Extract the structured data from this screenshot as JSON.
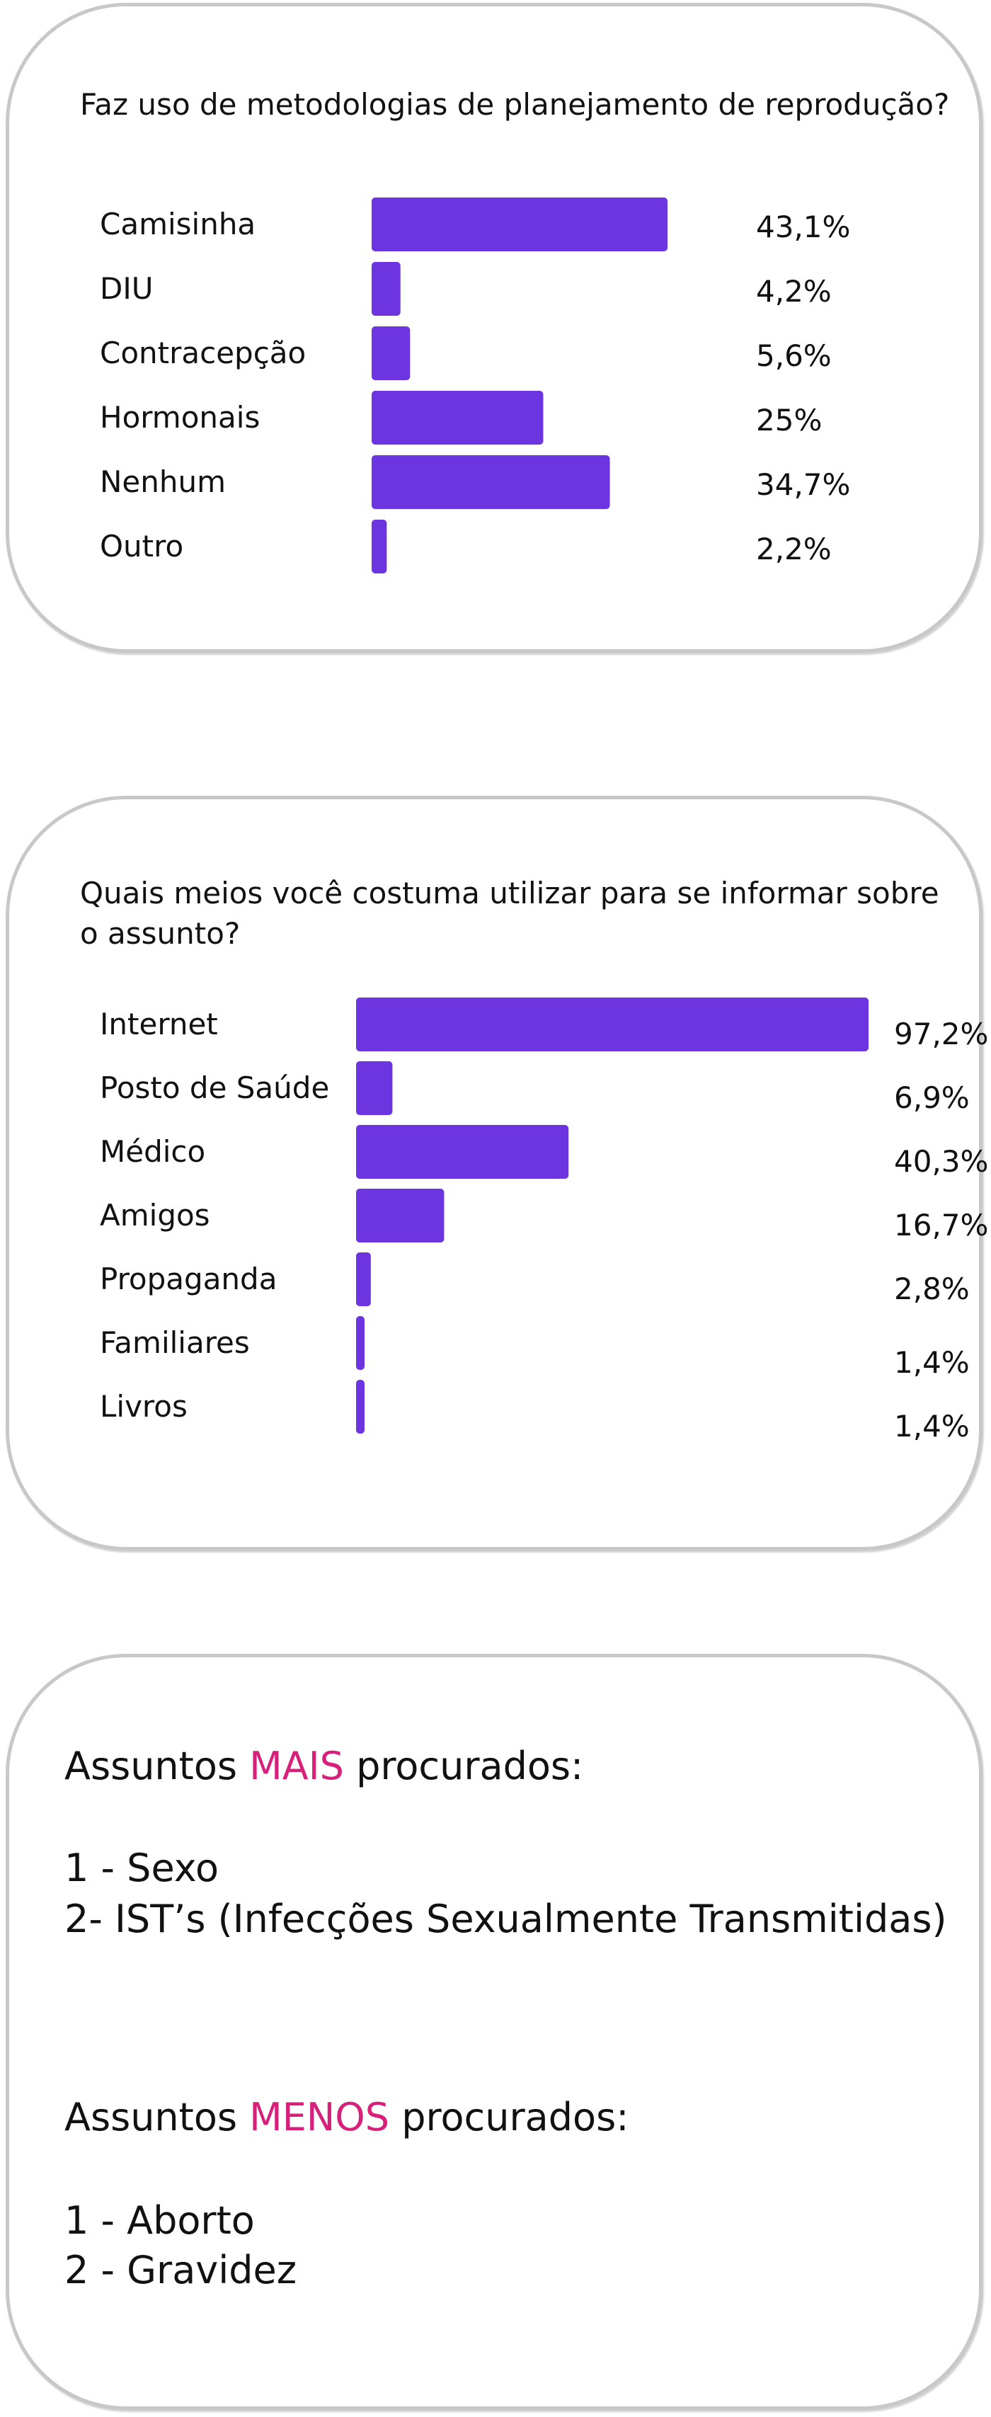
{
  "chart_data": [
    {
      "type": "bar",
      "title": "Faz uso de metodologias de planejamento de reprodução?",
      "categories": [
        "Camisinha",
        "DIU",
        "Contracepção",
        "Hormonais",
        "Nenhum",
        "Outro"
      ],
      "values": [
        43.1,
        4.2,
        5.6,
        25,
        34.7,
        2.2
      ],
      "value_labels": [
        "43,1%",
        "4,2%",
        "5,6%",
        "25%",
        "34,7%",
        "2,2%"
      ],
      "orientation": "horizontal",
      "bar_color": "#6c35e0"
    },
    {
      "type": "bar",
      "title": "Quais meios você costuma utilizar para se informar sobre o assunto?",
      "categories": [
        "Internet",
        "Posto de Saúde",
        "Médico",
        "Amigos",
        "Propaganda",
        "Familiares",
        "Livros"
      ],
      "values": [
        97.2,
        6.9,
        40.3,
        16.7,
        2.8,
        1.4,
        1.4
      ],
      "value_labels": [
        "97,2%",
        "6,9%",
        "40,3%",
        "16,7%",
        "2,8%",
        "1,4%",
        "1,4%"
      ],
      "orientation": "horizontal",
      "bar_color": "#6c35e0"
    }
  ],
  "summary": {
    "most_prefix": "Assuntos ",
    "most_highlight": "MAIS",
    "most_suffix": " procurados:",
    "most_items": [
      "1 - Sexo",
      "2- IST’s (Infecções Sexualmente Transmitidas)"
    ],
    "least_prefix": "Assuntos ",
    "least_highlight": "MENOS",
    "least_suffix": " procurados:",
    "least_items": [
      "1 - Aborto",
      "2 - Gravidez"
    ],
    "highlight_color": "#d6207a"
  }
}
